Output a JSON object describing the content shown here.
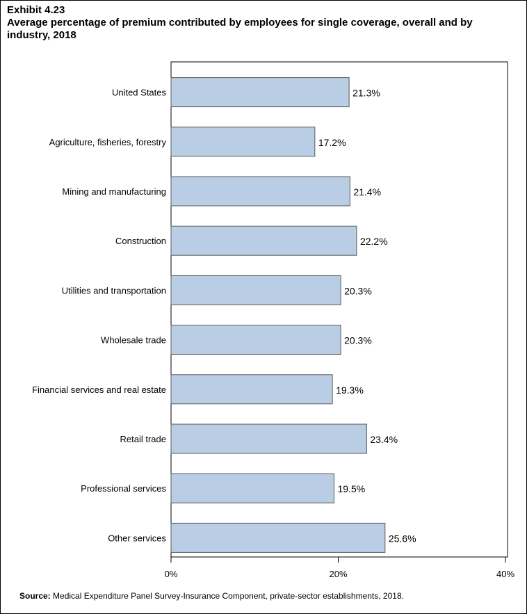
{
  "header": {
    "exhibit": "Exhibit 4.23",
    "title": "Average percentage of premium contributed by employees for single coverage, overall and by industry, 2018"
  },
  "chart_data": {
    "type": "bar",
    "orientation": "horizontal",
    "title": "Average percentage of premium contributed by employees for single coverage, overall and by industry, 2018",
    "categories": [
      "United States",
      "Agriculture, fisheries, forestry",
      "Mining and manufacturing",
      "Construction",
      "Utilities and transportation",
      "Wholesale trade",
      "Financial services and real estate",
      "Retail trade",
      "Professional services",
      "Other services"
    ],
    "values": [
      21.3,
      17.2,
      21.4,
      22.2,
      20.3,
      20.3,
      19.3,
      23.4,
      19.5,
      25.6
    ],
    "data_labels": [
      "21.3%",
      "17.2%",
      "21.4%",
      "22.2%",
      "20.3%",
      "20.3%",
      "19.3%",
      "23.4%",
      "19.5%",
      "25.6%"
    ],
    "xlim": [
      0,
      40
    ],
    "xticks": [
      0,
      20,
      40
    ],
    "xtick_labels": [
      "0%",
      "20%",
      "40%"
    ],
    "xlabel": "",
    "ylabel": "",
    "bar_color": "#b9cde5",
    "bar_edge_color": "#595959",
    "grid": false
  },
  "footer": {
    "source_label": "Source:",
    "source_text": "Medical Expenditure Panel Survey-Insurance Component, private-sector establishments, 2018."
  }
}
